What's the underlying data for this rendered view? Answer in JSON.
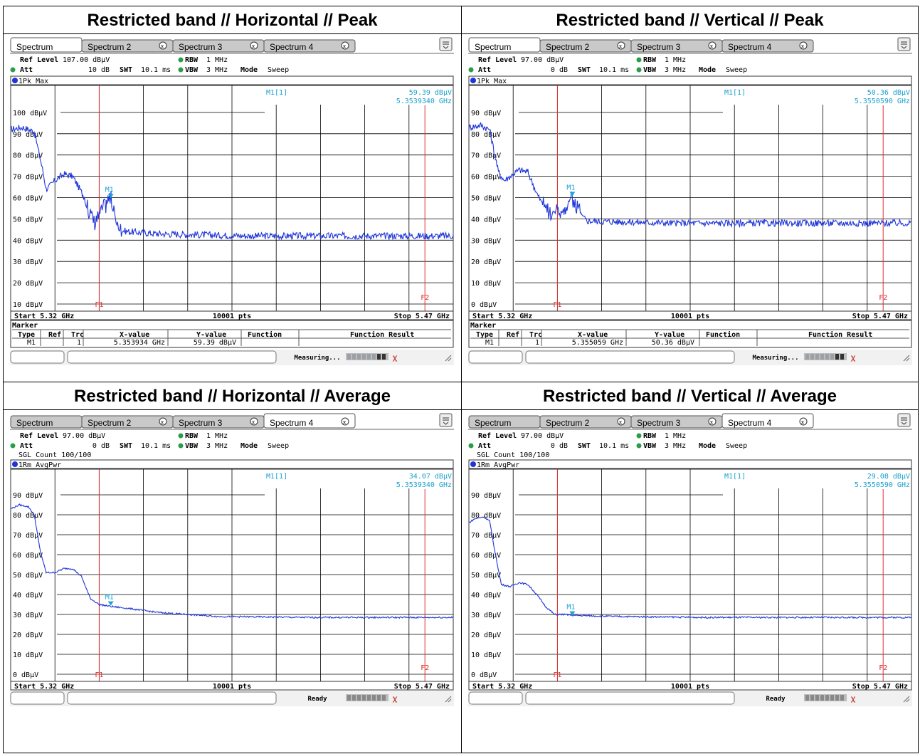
{
  "colors": {
    "trace": "#1f35d8",
    "marker": "#1aa3d6",
    "cyan": "#1aa0cc",
    "red": "#e03030",
    "grid": "#000000"
  },
  "tabs": [
    "Spectrum",
    "Spectrum 2",
    "Spectrum 3",
    "Spectrum 4"
  ],
  "labels": {
    "ref_level": "Ref Level",
    "att": "Att",
    "swt": "SWT",
    "rbw": "RBW",
    "vbw": "VBW",
    "mode": "Mode",
    "marker": "Marker",
    "col_type": "Type",
    "col_ref": "Ref",
    "col_trc": "Trc",
    "col_x": "X-value",
    "col_y": "Y-value",
    "col_function": "Function",
    "col_result": "Function Result",
    "start": "Start 5.32 GHz",
    "points": "10001 pts",
    "stop": "Stop 5.47 GHz",
    "m1_label": "M1[1]",
    "f1": "F1",
    "f2": "F2",
    "m1": "M1"
  },
  "panels": [
    {
      "title": "Restricted band // Horizontal // Peak",
      "active_tab": 0,
      "ref_level": "107.00 dBµV",
      "att": "10 dB",
      "swt": "10.1 ms",
      "rbw": "1 MHz",
      "vbw": "3 MHz",
      "mode": "Sweep",
      "sgl_count": "",
      "trace_label": "1Pk Max",
      "m1_value": "59.39 dBµV",
      "m1_freq": "5.3539340 GHz",
      "y_ticks": [
        "100 dBµV",
        "90 dBµV",
        "80 dBµV",
        "70 dBµV",
        "60 dBµV",
        "50 dBµV",
        "40 dBµV",
        "30 dBµV",
        "20 dBµV",
        "10 dBµV"
      ],
      "marker_row": {
        "type": "M1",
        "ref": "",
        "trc": "1",
        "x": "5.353934 GHz",
        "y": "59.39 dBµV"
      },
      "status": "Measuring...",
      "chart_data": {
        "type": "line",
        "ylim": [
          10,
          110
        ],
        "xlim": [
          5.32,
          5.47
        ],
        "x": [
          5.32,
          5.324,
          5.328,
          5.331,
          5.332,
          5.333,
          5.335,
          5.338,
          5.341,
          5.345,
          5.347,
          5.349,
          5.3539,
          5.356,
          5.36,
          5.37,
          5.4,
          5.43,
          5.47
        ],
        "y": [
          92,
          93,
          91,
          72,
          64,
          65,
          68,
          71,
          70,
          60,
          50,
          48,
          59,
          45,
          44,
          43,
          42,
          42,
          42
        ]
      }
    },
    {
      "title": "Restricted band // Vertical // Peak",
      "active_tab": 0,
      "ref_level": "97.00 dBµV",
      "att": "0 dB",
      "swt": "10.1 ms",
      "rbw": "1 MHz",
      "vbw": "3 MHz",
      "mode": "Sweep",
      "sgl_count": "",
      "trace_label": "1Pk Max",
      "m1_value": "50.36 dBµV",
      "m1_freq": "5.3550590 GHz",
      "y_ticks": [
        "90 dBµV",
        "80 dBµV",
        "70 dBµV",
        "60 dBµV",
        "50 dBµV",
        "40 dBµV",
        "30 dBµV",
        "20 dBµV",
        "10 dBµV",
        "0 dBµV"
      ],
      "marker_row": {
        "type": "M1",
        "ref": "",
        "trc": "1",
        "x": "5.355059 GHz",
        "y": "50.36 dBµV"
      },
      "status": "Measuring...",
      "chart_data": {
        "type": "line",
        "ylim": [
          0,
          100
        ],
        "xlim": [
          5.32,
          5.47
        ],
        "x": [
          5.32,
          5.324,
          5.327,
          5.33,
          5.332,
          5.334,
          5.337,
          5.34,
          5.343,
          5.346,
          5.348,
          5.352,
          5.355,
          5.357,
          5.36,
          5.39,
          5.43,
          5.47
        ],
        "y": [
          83,
          84,
          82,
          62,
          58,
          60,
          63,
          62,
          52,
          44,
          41,
          42,
          48,
          43,
          39,
          38,
          38,
          38
        ]
      }
    },
    {
      "title": "Restricted band // Horizontal // Average",
      "active_tab": 3,
      "ref_level": "97.00 dBµV",
      "att": "0 dB",
      "swt": "10.1 ms",
      "rbw": "1 MHz",
      "vbw": "3 MHz",
      "mode": "Sweep",
      "sgl_count": "SGL Count 100/100",
      "trace_label": "1Rm AvgPwr",
      "m1_value": "34.07 dBµV",
      "m1_freq": "5.3539340 GHz",
      "y_ticks": [
        "90 dBµV",
        "80 dBµV",
        "70 dBµV",
        "60 dBµV",
        "50 dBµV",
        "40 dBµV",
        "30 dBµV",
        "20 dBµV",
        "10 dBµV",
        "0 dBµV"
      ],
      "marker_row": null,
      "status": "Ready",
      "chart_data": {
        "type": "line",
        "ylim": [
          0,
          100
        ],
        "xlim": [
          5.32,
          5.47
        ],
        "x": [
          5.32,
          5.323,
          5.326,
          5.328,
          5.33,
          5.332,
          5.335,
          5.338,
          5.341,
          5.344,
          5.347,
          5.35,
          5.354,
          5.36,
          5.37,
          5.39,
          5.42,
          5.47
        ],
        "y": [
          83,
          85,
          84,
          80,
          62,
          51,
          51,
          53,
          53,
          49,
          38,
          35,
          34,
          33,
          31,
          29,
          28.5,
          28.5
        ]
      }
    },
    {
      "title": "Restricted band // Vertical // Average",
      "active_tab": 3,
      "ref_level": "97.00 dBµV",
      "att": "0 dB",
      "swt": "10.1 ms",
      "rbw": "1 MHz",
      "vbw": "3 MHz",
      "mode": "Sweep",
      "sgl_count": "SGL Count 100/100",
      "trace_label": "1Rm AvgPwr",
      "m1_value": "29.08 dBµV",
      "m1_freq": "5.3550590 GHz",
      "y_ticks": [
        "90 dBµV",
        "80 dBµV",
        "70 dBµV",
        "60 dBµV",
        "50 dBµV",
        "40 dBµV",
        "30 dBµV",
        "20 dBµV",
        "10 dBµV",
        "0 dBµV"
      ],
      "marker_row": null,
      "status": "Ready",
      "chart_data": {
        "type": "line",
        "ylim": [
          0,
          100
        ],
        "xlim": [
          5.32,
          5.47
        ],
        "x": [
          5.32,
          5.322,
          5.325,
          5.327,
          5.329,
          5.331,
          5.334,
          5.337,
          5.34,
          5.343,
          5.346,
          5.349,
          5.352,
          5.356,
          5.37,
          5.4,
          5.47
        ],
        "y": [
          76,
          78,
          79,
          77,
          60,
          45,
          44,
          46,
          45,
          40,
          34,
          30,
          30,
          29.5,
          29,
          28.5,
          28.5
        ]
      }
    }
  ]
}
